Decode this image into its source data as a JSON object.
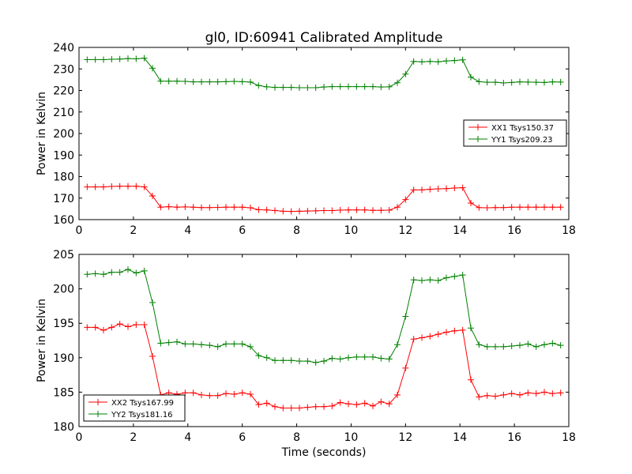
{
  "title": "gl0, ID:60941 Calibrated Amplitude",
  "xlabel": "Time (seconds)",
  "chart_data": [
    {
      "type": "line",
      "ylabel": "Power in Kelvin",
      "xlim": [
        0,
        18
      ],
      "ylim": [
        160,
        240
      ],
      "xticks": [
        0,
        2,
        4,
        6,
        8,
        10,
        12,
        14,
        16,
        18
      ],
      "yticks": [
        160,
        170,
        180,
        190,
        200,
        210,
        220,
        230,
        240
      ],
      "grid": false,
      "legend_position": "center-right",
      "x": [
        0.3,
        0.6,
        0.9,
        1.2,
        1.5,
        1.8,
        2.1,
        2.4,
        2.7,
        3.0,
        3.3,
        3.6,
        3.9,
        4.2,
        4.5,
        4.8,
        5.1,
        5.4,
        5.7,
        6.0,
        6.3,
        6.6,
        6.9,
        7.2,
        7.5,
        7.8,
        8.1,
        8.4,
        8.7,
        9.0,
        9.3,
        9.6,
        9.9,
        10.2,
        10.5,
        10.8,
        11.1,
        11.4,
        11.7,
        12.0,
        12.3,
        12.6,
        12.9,
        13.2,
        13.5,
        13.8,
        14.1,
        14.4,
        14.7,
        15.0,
        15.3,
        15.6,
        15.9,
        16.2,
        16.5,
        16.8,
        17.1,
        17.4,
        17.7
      ],
      "series": [
        {
          "name": "XX1 Tsys150.37",
          "color": "#ff0000",
          "values": [
            175.2,
            175.2,
            175.2,
            175.4,
            175.5,
            175.5,
            175.5,
            175.2,
            171.0,
            165.8,
            166.0,
            165.8,
            165.9,
            165.8,
            165.6,
            165.6,
            165.7,
            165.8,
            165.8,
            165.8,
            165.5,
            164.6,
            164.5,
            164.2,
            163.9,
            163.8,
            163.9,
            164.0,
            164.1,
            164.2,
            164.2,
            164.4,
            164.5,
            164.5,
            164.5,
            164.3,
            164.3,
            164.4,
            165.8,
            169.3,
            173.8,
            173.8,
            174.1,
            174.3,
            174.4,
            174.7,
            174.8,
            167.7,
            165.6,
            165.5,
            165.6,
            165.6,
            165.8,
            165.8,
            165.8,
            165.8,
            165.8,
            165.8,
            165.8
          ]
        },
        {
          "name": "YY1 Tsys209.23",
          "color": "#008000",
          "values": [
            234.3,
            234.3,
            234.3,
            234.5,
            234.6,
            234.8,
            234.7,
            235.0,
            230.3,
            224.3,
            224.3,
            224.3,
            224.2,
            224.0,
            224.0,
            224.0,
            224.0,
            224.1,
            224.2,
            224.1,
            223.9,
            222.3,
            221.7,
            221.4,
            221.4,
            221.4,
            221.3,
            221.3,
            221.3,
            221.6,
            221.8,
            221.8,
            221.8,
            221.8,
            221.8,
            221.8,
            221.6,
            221.7,
            223.6,
            227.6,
            233.5,
            233.3,
            233.5,
            233.3,
            233.7,
            233.9,
            234.2,
            226.2,
            224.1,
            223.8,
            223.8,
            223.5,
            223.7,
            224.0,
            223.9,
            223.8,
            223.7,
            224.0,
            223.9
          ]
        }
      ]
    },
    {
      "type": "line",
      "ylabel": "Power in Kelvin",
      "xlim": [
        0,
        18
      ],
      "ylim": [
        180,
        205
      ],
      "xticks": [
        0,
        2,
        4,
        6,
        8,
        10,
        12,
        14,
        16,
        18
      ],
      "yticks": [
        180,
        185,
        190,
        195,
        200,
        205
      ],
      "grid": false,
      "legend_position": "lower-left",
      "x": [
        0.3,
        0.6,
        0.9,
        1.2,
        1.5,
        1.8,
        2.1,
        2.4,
        2.7,
        3.0,
        3.3,
        3.6,
        3.9,
        4.2,
        4.5,
        4.8,
        5.1,
        5.4,
        5.7,
        6.0,
        6.3,
        6.6,
        6.9,
        7.2,
        7.5,
        7.8,
        8.1,
        8.4,
        8.7,
        9.0,
        9.3,
        9.6,
        9.9,
        10.2,
        10.5,
        10.8,
        11.1,
        11.4,
        11.7,
        12.0,
        12.3,
        12.6,
        12.9,
        13.2,
        13.5,
        13.8,
        14.1,
        14.4,
        14.7,
        15.0,
        15.3,
        15.6,
        15.9,
        16.2,
        16.5,
        16.8,
        17.1,
        17.4,
        17.7
      ],
      "series": [
        {
          "name": "XX2 Tsys167.99",
          "color": "#ff0000",
          "values": [
            194.4,
            194.4,
            194.0,
            194.4,
            194.9,
            194.5,
            194.8,
            194.8,
            190.2,
            184.6,
            184.9,
            184.7,
            184.9,
            184.9,
            184.6,
            184.5,
            184.5,
            184.8,
            184.7,
            184.9,
            184.7,
            183.2,
            183.4,
            182.9,
            182.7,
            182.7,
            182.7,
            182.8,
            182.9,
            182.9,
            183.0,
            183.5,
            183.3,
            183.2,
            183.4,
            183.0,
            183.6,
            183.3,
            184.6,
            188.5,
            192.7,
            192.9,
            193.1,
            193.4,
            193.7,
            193.9,
            194.0,
            186.8,
            184.3,
            184.5,
            184.4,
            184.6,
            184.8,
            184.6,
            184.9,
            184.8,
            185.0,
            184.8,
            184.9
          ]
        },
        {
          "name": "YY2 Tsys181.16",
          "color": "#008000",
          "values": [
            202.1,
            202.2,
            202.1,
            202.4,
            202.4,
            202.8,
            202.3,
            202.6,
            198.0,
            192.1,
            192.2,
            192.3,
            192.0,
            192.0,
            191.9,
            191.8,
            191.6,
            192.0,
            192.0,
            192.0,
            191.6,
            190.3,
            190.0,
            189.6,
            189.6,
            189.6,
            189.5,
            189.5,
            189.3,
            189.5,
            189.9,
            189.8,
            190.0,
            190.1,
            190.1,
            190.1,
            189.9,
            189.8,
            191.9,
            196.0,
            201.3,
            201.2,
            201.3,
            201.2,
            201.6,
            201.8,
            202.0,
            194.3,
            191.9,
            191.6,
            191.6,
            191.6,
            191.7,
            191.8,
            192.0,
            191.6,
            191.9,
            192.1,
            191.8
          ]
        }
      ]
    }
  ]
}
